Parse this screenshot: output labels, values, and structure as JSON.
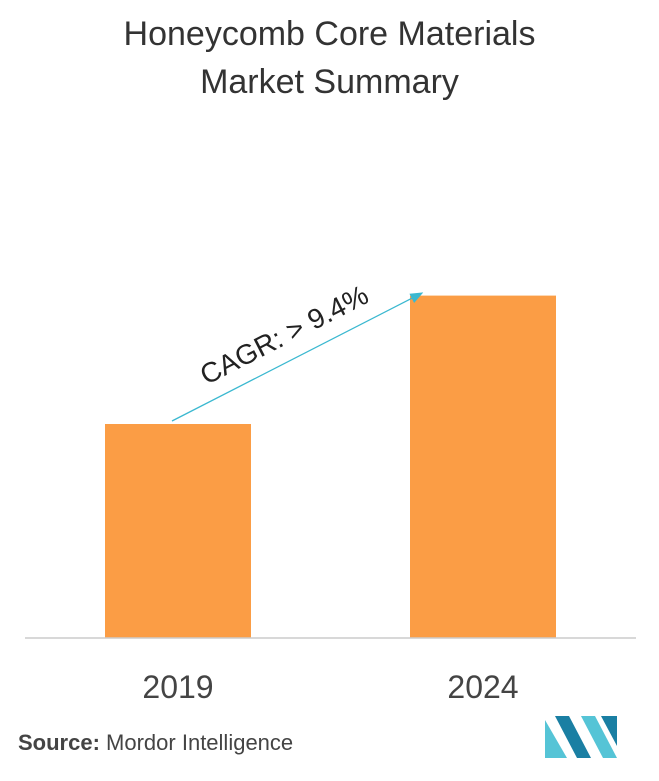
{
  "title_lines": [
    "Honeycomb Core Materials",
    "Market Summary"
  ],
  "chart_data": {
    "type": "bar",
    "categories": [
      "2019",
      "2024"
    ],
    "values": [
      50,
      80
    ],
    "bar_color": "#fb9d45",
    "annotation": "CAGR: > 9.4%",
    "annotation_color": "#3ab8d0"
  },
  "source": {
    "label": "Source:",
    "text": "Mordor Intelligence"
  },
  "logo": {
    "icon": "mordor-intelligence-logo",
    "colors": [
      "#1a7fa3",
      "#55c4d6"
    ]
  }
}
